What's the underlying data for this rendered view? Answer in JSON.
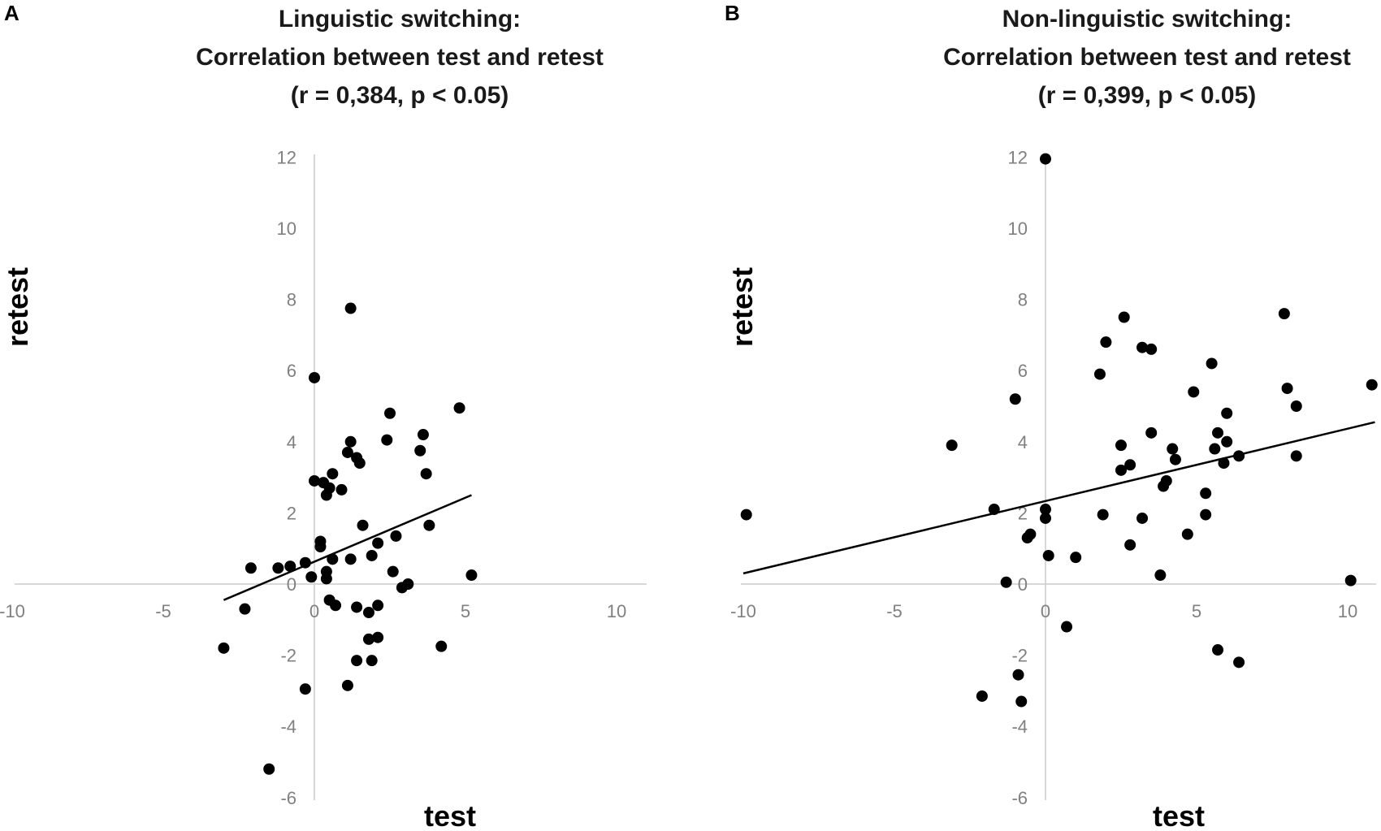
{
  "chart_data": [
    {
      "type": "scatter",
      "panel": "A",
      "title": [
        "Linguistic switching:",
        "Correlation between test and retest",
        "(r = 0,384, p < 0.05)"
      ],
      "xlabel": "test",
      "ylabel": "retest",
      "xlim": [
        -10,
        10
      ],
      "ylim": [
        -6,
        12
      ],
      "xticks": [
        -10,
        -5,
        0,
        5,
        10
      ],
      "yticks": [
        -6,
        -4,
        -2,
        0,
        2,
        4,
        6,
        8,
        10,
        12
      ],
      "trendline": {
        "x": [
          -3.0,
          5.2
        ],
        "y": [
          -0.45,
          2.5
        ]
      },
      "points": [
        [
          1.2,
          7.75
        ],
        [
          0.0,
          5.8
        ],
        [
          2.5,
          4.8
        ],
        [
          4.8,
          4.95
        ],
        [
          3.6,
          4.2
        ],
        [
          2.4,
          4.05
        ],
        [
          1.2,
          4.0
        ],
        [
          3.5,
          3.75
        ],
        [
          1.1,
          3.7
        ],
        [
          1.4,
          3.55
        ],
        [
          1.5,
          3.4
        ],
        [
          0.6,
          3.1
        ],
        [
          3.7,
          3.1
        ],
        [
          0.0,
          2.9
        ],
        [
          0.3,
          2.85
        ],
        [
          0.5,
          2.7
        ],
        [
          0.9,
          2.65
        ],
        [
          0.4,
          2.5
        ],
        [
          1.6,
          1.65
        ],
        [
          3.8,
          1.65
        ],
        [
          2.7,
          1.35
        ],
        [
          0.2,
          1.2
        ],
        [
          0.2,
          1.05
        ],
        [
          2.1,
          1.15
        ],
        [
          1.9,
          0.8
        ],
        [
          0.6,
          0.7
        ],
        [
          1.2,
          0.7
        ],
        [
          -0.3,
          0.6
        ],
        [
          -0.8,
          0.5
        ],
        [
          -1.2,
          0.45
        ],
        [
          -2.1,
          0.45
        ],
        [
          2.6,
          0.35
        ],
        [
          0.4,
          0.35
        ],
        [
          -0.1,
          0.2
        ],
        [
          0.4,
          0.15
        ],
        [
          5.2,
          0.25
        ],
        [
          3.1,
          0.0
        ],
        [
          2.9,
          -0.1
        ],
        [
          0.5,
          -0.45
        ],
        [
          0.7,
          -0.6
        ],
        [
          2.1,
          -0.6
        ],
        [
          1.4,
          -0.65
        ],
        [
          -2.3,
          -0.7
        ],
        [
          1.8,
          -0.8
        ],
        [
          -3.0,
          -1.8
        ],
        [
          4.2,
          -1.75
        ],
        [
          1.8,
          -1.55
        ],
        [
          2.1,
          -1.5
        ],
        [
          1.4,
          -2.15
        ],
        [
          1.9,
          -2.15
        ],
        [
          1.1,
          -2.85
        ],
        [
          -0.3,
          -2.95
        ],
        [
          -1.5,
          -5.2
        ]
      ]
    },
    {
      "type": "scatter",
      "panel": "B",
      "title": [
        "Non-linguistic switching:",
        "Correlation between test and retest",
        "(r = 0,399, p < 0.05)"
      ],
      "xlabel": "test",
      "ylabel": "retest",
      "xlim": [
        -10,
        10
      ],
      "ylim": [
        -6,
        12
      ],
      "xticks": [
        -10,
        -5,
        0,
        5,
        10
      ],
      "yticks": [
        -6,
        -4,
        -2,
        0,
        2,
        4,
        6,
        8,
        10,
        12
      ],
      "trendline": {
        "x": [
          -10.0,
          10.9
        ],
        "y": [
          0.3,
          4.55
        ]
      },
      "points": [
        [
          0.0,
          11.95
        ],
        [
          7.9,
          7.6
        ],
        [
          2.6,
          7.5
        ],
        [
          2.0,
          6.8
        ],
        [
          3.2,
          6.65
        ],
        [
          3.5,
          6.6
        ],
        [
          5.5,
          6.2
        ],
        [
          1.8,
          5.9
        ],
        [
          10.8,
          5.6
        ],
        [
          8.0,
          5.5
        ],
        [
          4.9,
          5.4
        ],
        [
          -1.0,
          5.2
        ],
        [
          8.3,
          5.0
        ],
        [
          6.0,
          4.8
        ],
        [
          3.5,
          4.25
        ],
        [
          5.7,
          4.25
        ],
        [
          6.0,
          4.0
        ],
        [
          -3.1,
          3.9
        ],
        [
          2.5,
          3.9
        ],
        [
          4.2,
          3.8
        ],
        [
          5.6,
          3.8
        ],
        [
          6.4,
          3.6
        ],
        [
          8.3,
          3.6
        ],
        [
          4.3,
          3.5
        ],
        [
          5.9,
          3.4
        ],
        [
          2.8,
          3.35
        ],
        [
          2.5,
          3.2
        ],
        [
          4.0,
          2.9
        ],
        [
          3.9,
          2.75
        ],
        [
          5.3,
          2.55
        ],
        [
          -1.7,
          2.1
        ],
        [
          0.0,
          2.1
        ],
        [
          -9.9,
          1.95
        ],
        [
          1.9,
          1.95
        ],
        [
          5.3,
          1.95
        ],
        [
          0.0,
          1.85
        ],
        [
          3.2,
          1.85
        ],
        [
          -0.5,
          1.4
        ],
        [
          -0.6,
          1.3
        ],
        [
          4.7,
          1.4
        ],
        [
          2.8,
          1.1
        ],
        [
          0.1,
          0.8
        ],
        [
          1.0,
          0.75
        ],
        [
          3.8,
          0.25
        ],
        [
          -1.3,
          0.05
        ],
        [
          10.1,
          0.1
        ],
        [
          0.7,
          -1.2
        ],
        [
          5.7,
          -1.85
        ],
        [
          6.4,
          -2.2
        ],
        [
          -0.9,
          -2.55
        ],
        [
          -2.1,
          -3.15
        ],
        [
          -0.8,
          -3.3
        ]
      ]
    }
  ]
}
